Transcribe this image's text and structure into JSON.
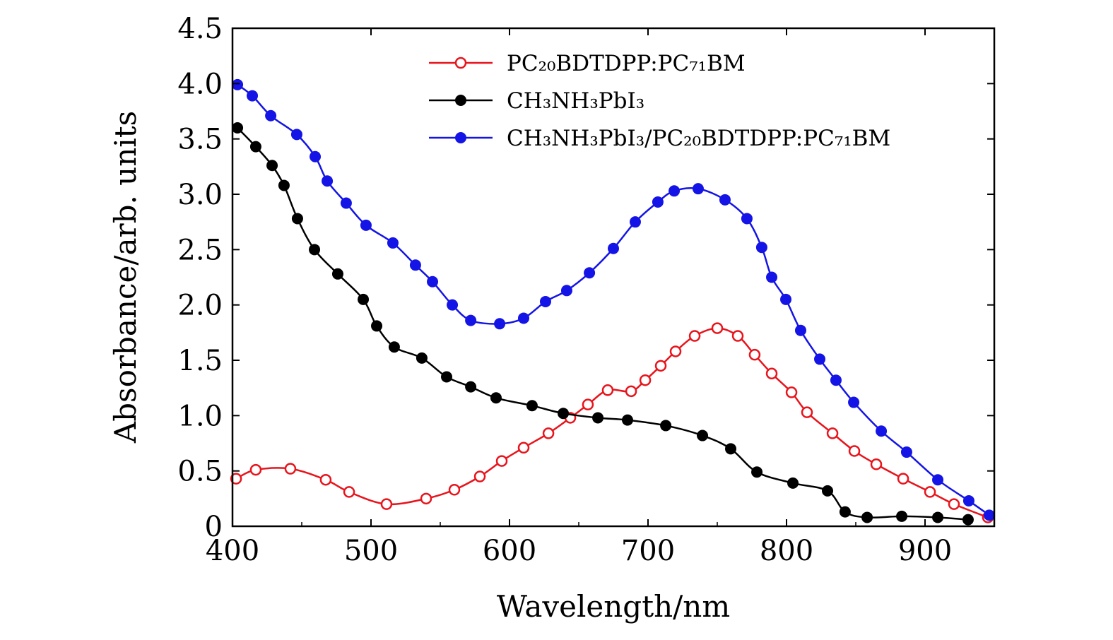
{
  "chart_data": {
    "type": "line",
    "title": "",
    "xlabel": "Wavelength/nm",
    "ylabel": "Absorbance/arb. units",
    "xlim": [
      400,
      950
    ],
    "ylim": [
      0,
      4.5
    ],
    "xticks": [
      "400",
      "500",
      "600",
      "700",
      "800",
      "900"
    ],
    "yticks": [
      "0",
      "0.5",
      "1.0",
      "1.5",
      "2.0",
      "2.5",
      "3.0",
      "3.5",
      "4.0",
      "4.5"
    ],
    "grid": false,
    "legend_position": "top-right",
    "series": [
      {
        "name": "PC₂₀BDTDPP:PC₇₁BM",
        "color": "#e8141c",
        "marker": "open-circle",
        "x": [
          402.6,
          416.8,
          441.8,
          467.3,
          484.2,
          511.2,
          539.8,
          560.2,
          578.6,
          594.4,
          610.2,
          628.1,
          643.9,
          656.6,
          670.9,
          687.8,
          698,
          709.2,
          719.9,
          733.7,
          750,
          764.8,
          777,
          789.3,
          803.6,
          814.8,
          833.2,
          849,
          864.8,
          884.2,
          903.6,
          920.9,
          945.4
        ],
        "y": [
          0.43,
          0.51,
          0.52,
          0.42,
          0.31,
          0.2,
          0.25,
          0.33,
          0.45,
          0.59,
          0.71,
          0.84,
          0.98,
          1.1,
          1.23,
          1.22,
          1.32,
          1.45,
          1.58,
          1.72,
          1.79,
          1.72,
          1.55,
          1.38,
          1.21,
          1.03,
          0.84,
          0.68,
          0.56,
          0.43,
          0.31,
          0.2,
          0.08
        ]
      },
      {
        "name": "CH₃NH₃PbI₃",
        "color": "#000000",
        "marker": "filled-circle",
        "x": [
          403.6,
          416.8,
          428.6,
          437.2,
          446.9,
          459.2,
          476,
          494.4,
          504.1,
          516.8,
          536.7,
          554.6,
          572,
          590.3,
          616.3,
          638.8,
          663.8,
          685.2,
          712.8,
          739.3,
          759.7,
          778.6,
          804.6,
          829.6,
          842.3,
          858.2,
          883.2,
          909.2,
          931.1
        ],
        "y": [
          3.6,
          3.43,
          3.26,
          3.08,
          2.78,
          2.5,
          2.28,
          2.05,
          1.81,
          1.62,
          1.52,
          1.35,
          1.26,
          1.16,
          1.09,
          1.02,
          0.98,
          0.96,
          0.91,
          0.82,
          0.7,
          0.49,
          0.39,
          0.32,
          0.13,
          0.08,
          0.09,
          0.08,
          0.06
        ]
      },
      {
        "name": "CH₃NH₃PbI₃/PC₂₀BDTDPP:PC₇₁BM",
        "color": "#1414e6",
        "marker": "filled-circle",
        "x": [
          403.6,
          414.3,
          427.6,
          446.4,
          459.7,
          468.4,
          482.1,
          496.4,
          515.8,
          532.1,
          544.4,
          558.7,
          572,
          592.9,
          610.2,
          626,
          641.3,
          657.7,
          675,
          690.8,
          707.1,
          718.9,
          736.2,
          755.6,
          771.4,
          782.1,
          789.3,
          799.5,
          810.2,
          824,
          835.7,
          848.5,
          868.4,
          886.7,
          909.2,
          931.6,
          946.4
        ],
        "y": [
          3.99,
          3.89,
          3.71,
          3.54,
          3.34,
          3.12,
          2.92,
          2.72,
          2.56,
          2.36,
          2.21,
          2.0,
          1.86,
          1.83,
          1.88,
          2.03,
          2.13,
          2.29,
          2.51,
          2.75,
          2.93,
          3.03,
          3.05,
          2.95,
          2.78,
          2.52,
          2.25,
          2.05,
          1.77,
          1.51,
          1.32,
          1.12,
          0.86,
          0.67,
          0.42,
          0.23,
          0.1
        ]
      }
    ]
  }
}
